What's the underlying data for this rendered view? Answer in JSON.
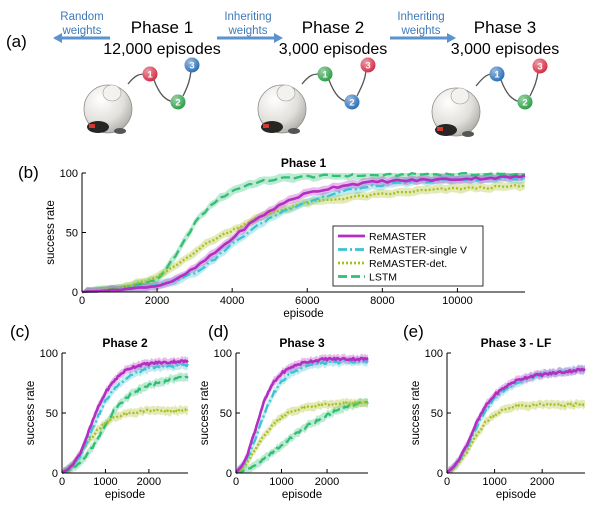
{
  "panel_labels": {
    "a": "(a)",
    "b": "(b)",
    "c": "(c)",
    "d": "(d)",
    "e": "(e)"
  },
  "phase_schedule": {
    "phases": [
      {
        "title": "Phase 1",
        "episodes": "12,000 episodes",
        "arrow_label": [
          "Random",
          "weights"
        ],
        "order": [
          "1",
          "2",
          "3"
        ]
      },
      {
        "title": "Phase 2",
        "episodes": "3,000 episodes",
        "arrow_label": [
          "Inheriting",
          "weights"
        ],
        "order": [
          "1",
          "2",
          "3"
        ]
      },
      {
        "title": "Phase 3",
        "episodes": "3,000 episodes",
        "arrow_label": [
          "Inheriting",
          "weights"
        ],
        "order": [
          "1",
          "2",
          "3"
        ]
      }
    ],
    "node_colors": {
      "red": "#d3213a",
      "green": "#1f9a3c",
      "blue": "#1f67b4"
    },
    "robot_icon": "robot-mouse-icon"
  },
  "colors": {
    "ReMASTER": "#b32ec2",
    "ReMASTER-single V": "#3cc3d3",
    "ReMASTER-det.": "#a9bf1f",
    "LSTM": "#2fbf75",
    "arrow": "#5b93cf",
    "arrow_text": "#3f79b8"
  },
  "chart_data": [
    {
      "type": "line",
      "panel": "b",
      "title": "Phase 1",
      "xlabel": "episode",
      "ylabel": "success rate",
      "xlim": [
        0,
        11800
      ],
      "ylim": [
        0,
        100
      ],
      "xticks": [
        0,
        2000,
        4000,
        6000,
        8000,
        10000
      ],
      "yticks": [
        0,
        50,
        100
      ],
      "legend": "inside-right",
      "series": [
        {
          "name": "ReMASTER",
          "style": "solid",
          "x": [
            0,
            1000,
            2000,
            2500,
            3000,
            3500,
            4000,
            4500,
            5000,
            5500,
            6000,
            7000,
            8000,
            9000,
            10000,
            11000,
            11800
          ],
          "y": [
            0,
            2,
            5,
            10,
            20,
            32,
            45,
            58,
            68,
            77,
            83,
            90,
            93,
            94,
            95,
            96,
            97
          ]
        },
        {
          "name": "ReMASTER-single V",
          "style": "dashdot",
          "x": [
            0,
            1000,
            2000,
            2500,
            3000,
            3500,
            4000,
            4500,
            5000,
            5500,
            6000,
            7000,
            8000,
            9000,
            10000,
            11000,
            11800
          ],
          "y": [
            0,
            2,
            6,
            10,
            16,
            27,
            40,
            52,
            62,
            70,
            76,
            85,
            90,
            93,
            94,
            95,
            95
          ]
        },
        {
          "name": "ReMASTER-det.",
          "style": "dotted",
          "x": [
            0,
            1000,
            2000,
            2500,
            3000,
            3500,
            4000,
            4500,
            5000,
            5500,
            6000,
            7000,
            8000,
            9000,
            10000,
            11000,
            11800
          ],
          "y": [
            0,
            3,
            12,
            22,
            34,
            44,
            52,
            60,
            66,
            71,
            75,
            79,
            82,
            85,
            87,
            88,
            89
          ]
        },
        {
          "name": "LSTM",
          "style": "dashed",
          "x": [
            0,
            1000,
            2000,
            2500,
            3000,
            3500,
            4000,
            4500,
            5000,
            5500,
            6000,
            7000,
            8000,
            9000,
            10000,
            11000,
            11800
          ],
          "y": [
            0,
            3,
            10,
            30,
            58,
            75,
            85,
            91,
            94,
            96,
            97,
            98,
            98,
            99,
            99,
            99,
            99
          ]
        }
      ]
    },
    {
      "type": "line",
      "panel": "c",
      "title": "Phase 2",
      "xlabel": "episode",
      "ylabel": "success rate",
      "xlim": [
        0,
        2900
      ],
      "ylim": [
        0,
        100
      ],
      "xticks": [
        0,
        1000,
        2000
      ],
      "yticks": [
        0,
        50,
        100
      ],
      "series": [
        {
          "name": "ReMASTER",
          "style": "solid",
          "x": [
            0,
            200,
            400,
            600,
            800,
            1000,
            1200,
            1400,
            1600,
            1800,
            2000,
            2200,
            2400,
            2600,
            2800
          ],
          "y": [
            0,
            5,
            15,
            33,
            52,
            67,
            77,
            84,
            88,
            90,
            91,
            92,
            92,
            93,
            93
          ]
        },
        {
          "name": "ReMASTER-single V",
          "style": "dashdot",
          "x": [
            0,
            200,
            400,
            600,
            800,
            1000,
            1200,
            1400,
            1600,
            1800,
            2000,
            2200,
            2400,
            2600,
            2800
          ],
          "y": [
            0,
            5,
            13,
            28,
            45,
            60,
            70,
            77,
            82,
            85,
            87,
            88,
            89,
            89,
            90
          ]
        },
        {
          "name": "ReMASTER-det.",
          "style": "dotted",
          "x": [
            0,
            200,
            400,
            600,
            800,
            1000,
            1200,
            1400,
            1600,
            1800,
            2000,
            2200,
            2400,
            2600,
            2800
          ],
          "y": [
            0,
            5,
            14,
            26,
            35,
            42,
            46,
            49,
            50,
            51,
            52,
            52,
            51,
            52,
            52
          ]
        },
        {
          "name": "LSTM",
          "style": "dashed",
          "x": [
            0,
            200,
            400,
            600,
            800,
            1000,
            1200,
            1400,
            1600,
            1800,
            2000,
            2200,
            2400,
            2600,
            2800
          ],
          "y": [
            0,
            3,
            8,
            16,
            27,
            40,
            52,
            60,
            66,
            70,
            73,
            75,
            77,
            79,
            80
          ]
        }
      ]
    },
    {
      "type": "line",
      "panel": "d",
      "title": "Phase 3",
      "xlabel": "episode",
      "ylabel": "success rate",
      "xlim": [
        0,
        2900
      ],
      "ylim": [
        0,
        100
      ],
      "xticks": [
        0,
        1000,
        2000
      ],
      "yticks": [
        0,
        50,
        100
      ],
      "series": [
        {
          "name": "ReMASTER",
          "style": "solid",
          "x": [
            0,
            200,
            400,
            600,
            800,
            1000,
            1200,
            1400,
            1600,
            1800,
            2000,
            2200,
            2400,
            2600,
            2800
          ],
          "y": [
            0,
            10,
            33,
            58,
            74,
            83,
            88,
            91,
            93,
            94,
            95,
            95,
            95,
            95,
            95
          ]
        },
        {
          "name": "ReMASTER-single V",
          "style": "dashdot",
          "x": [
            0,
            200,
            400,
            600,
            800,
            1000,
            1200,
            1400,
            1600,
            1800,
            2000,
            2200,
            2400,
            2600,
            2800
          ],
          "y": [
            0,
            8,
            26,
            48,
            65,
            76,
            83,
            87,
            90,
            91,
            92,
            92,
            93,
            93,
            93
          ]
        },
        {
          "name": "ReMASTER-det.",
          "style": "dotted",
          "x": [
            0,
            200,
            400,
            600,
            800,
            1000,
            1200,
            1400,
            1600,
            1800,
            2000,
            2200,
            2400,
            2600,
            2800
          ],
          "y": [
            0,
            6,
            18,
            30,
            40,
            47,
            51,
            53,
            55,
            56,
            57,
            57,
            58,
            58,
            58
          ]
        },
        {
          "name": "LSTM",
          "style": "dashed",
          "x": [
            0,
            200,
            400,
            600,
            800,
            1000,
            1200,
            1400,
            1600,
            1800,
            2000,
            2200,
            2400,
            2600,
            2800
          ],
          "y": [
            0,
            2,
            6,
            11,
            17,
            23,
            29,
            35,
            40,
            44,
            48,
            52,
            55,
            57,
            59
          ]
        }
      ]
    },
    {
      "type": "line",
      "panel": "e",
      "title": "Phase 3 - LF",
      "xlabel": "episode",
      "ylabel": "success rate",
      "xlim": [
        0,
        2900
      ],
      "ylim": [
        0,
        100
      ],
      "xticks": [
        0,
        1000,
        2000
      ],
      "yticks": [
        0,
        50,
        100
      ],
      "series": [
        {
          "name": "ReMASTER",
          "style": "solid",
          "x": [
            0,
            200,
            400,
            600,
            800,
            1000,
            1200,
            1400,
            1600,
            1800,
            2000,
            2200,
            2400,
            2600,
            2800
          ],
          "y": [
            0,
            8,
            22,
            40,
            55,
            65,
            71,
            76,
            79,
            81,
            82,
            83,
            84,
            85,
            86
          ]
        },
        {
          "name": "ReMASTER-single V",
          "style": "dashdot",
          "x": [
            0,
            200,
            400,
            600,
            800,
            1000,
            1200,
            1400,
            1600,
            1800,
            2000,
            2200,
            2400,
            2600,
            2800
          ],
          "y": [
            0,
            7,
            20,
            37,
            52,
            62,
            69,
            74,
            77,
            80,
            82,
            83,
            84,
            85,
            86
          ]
        },
        {
          "name": "ReMASTER-det.",
          "style": "dotted",
          "x": [
            0,
            200,
            400,
            600,
            800,
            1000,
            1200,
            1400,
            1600,
            1800,
            2000,
            2200,
            2400,
            2600,
            2800
          ],
          "y": [
            0,
            6,
            16,
            30,
            42,
            49,
            53,
            55,
            56,
            56,
            57,
            57,
            56,
            57,
            57
          ]
        }
      ]
    }
  ]
}
